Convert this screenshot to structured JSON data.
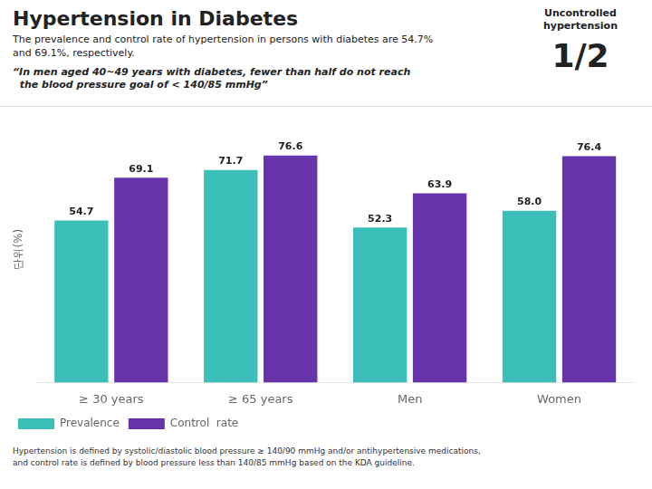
{
  "chart_data": {
    "type": "bar",
    "title": "Hypertension in Diabetes",
    "subtitle": "The prevalence and control rate of hypertension in persons with diabetes are 54.7%\nand 69.1%, respectively.",
    "annotations": [
      "“In men aged 40~49 years with diabetes, fewer than half do not reach\n  the blood pressure goal of < 140/85 mmHg”",
      "Uncontrolled\nhypertension",
      "1/2",
      "Hypertension is defined by systolic/diastolic blood pressure ≥ 140/90 mmHg and/or antihypertensive medications,",
      "and control rate is defined by blood pressure less than 140/85 mmHg based on the KDA guideline."
    ],
    "ylabel": "단위(%)",
    "categories": [
      "≥ 30 years",
      "≥ 65 years",
      "Men",
      "Women"
    ],
    "series": [
      {
        "name": "Prevalence",
        "color": "#3BBFB8",
        "values": [
          54.7,
          71.7,
          52.3,
          58.0
        ],
        "value_labels": [
          "54.7",
          "71.7",
          "52.3",
          "58.0"
        ]
      },
      {
        "name": "Control  rate",
        "color": "#6633AA",
        "values": [
          69.1,
          76.6,
          63.9,
          76.4
        ],
        "value_labels": [
          "69.1",
          "76.6",
          "63.9",
          "76.4"
        ]
      }
    ],
    "ylim": [
      0,
      90
    ],
    "grid": false,
    "legend": "lower left",
    "data_labels": true,
    "tick_labels": "x"
  }
}
